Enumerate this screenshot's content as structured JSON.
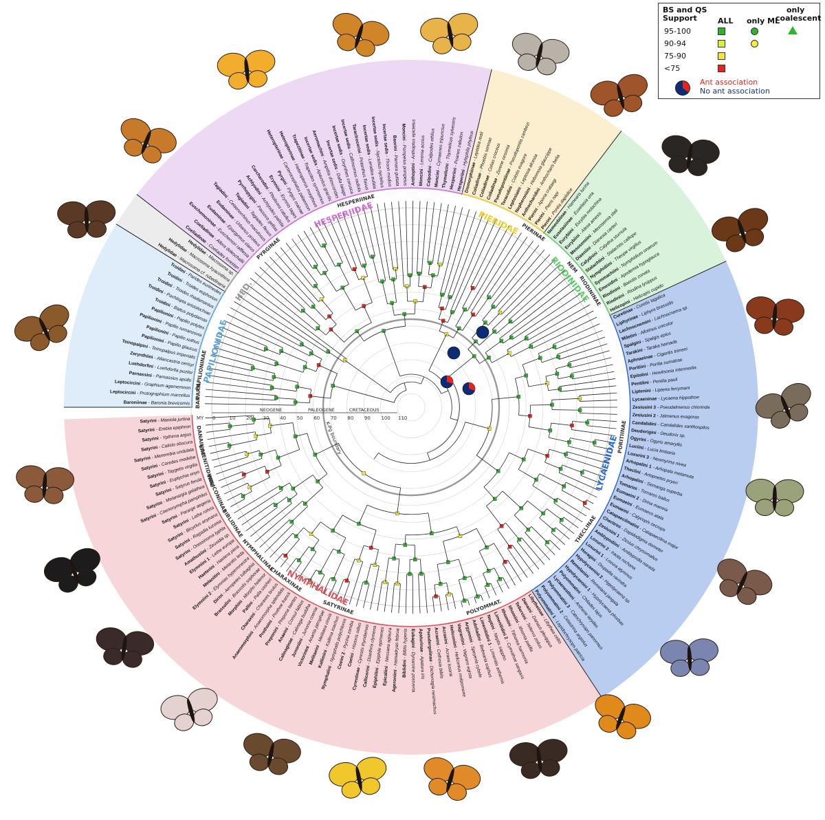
{
  "legend": {
    "header": [
      "BS and QS",
      "Support"
    ],
    "col_all": "ALL",
    "col_ml": "only ML",
    "col_coal": [
      "only",
      "coalescent"
    ],
    "rows": [
      {
        "label": "95-100",
        "color": "#2db52d"
      },
      {
        "label": "90-94",
        "color": "#d9f03a"
      },
      {
        "label": "75-90",
        "color": "#f3e63a"
      },
      {
        "label": "<75",
        "color": "#e8231c"
      }
    ],
    "ant": "Ant association",
    "noant": "No ant association",
    "ant_color": "#e8231c",
    "noant_color": "#0c2c75"
  },
  "timescale": {
    "unit": "MY",
    "ticks": [
      "0",
      "10",
      "20",
      "30",
      "40",
      "50",
      "60",
      "70",
      "80",
      "90",
      "100",
      "110"
    ],
    "eras": [
      "NEOGENE",
      "PALEOGENE",
      "CRETACEOUS"
    ],
    "boundary": "K-Pg boundary"
  },
  "families": [
    {
      "name": "PAPILIONIDAE",
      "color": "#5aa6dc",
      "bg": "#deedf9"
    },
    {
      "name": "HED.",
      "color": "#9a9a9a",
      "bg": "#ececec"
    },
    {
      "name": "HESPERIIDAE",
      "color": "#d26bdc",
      "bg": "#eed9f5"
    },
    {
      "name": "PIERIDAE",
      "color": "#f0cd2a",
      "bg": "#fbefcf"
    },
    {
      "name": "RIODINIDAE",
      "color": "#5fcf6a",
      "bg": "#d9f2dc"
    },
    {
      "name": "LYCAENIDAE",
      "color": "#2a6adf",
      "bg": "#b9cdf1"
    },
    {
      "name": "NYMPHALIDAE",
      "color": "#e2505a",
      "bg": "#f6d6d9"
    }
  ],
  "subfamilies": [
    "BAR.",
    "PARN.",
    "PAPILIONINAE",
    "PYRGINAE",
    "HESPERIINAE",
    "PIERINAE",
    "NEM",
    "RIODININAE",
    "PORITIINAE",
    "THECLINAE",
    "POLYOMMAT.",
    "SATYRINAE",
    "CHARAXINAE",
    "NYMPHALINAE",
    "BIBLIDINAE",
    "HELICONIINAE",
    "LIMENITIDINAE",
    "DANAINAE"
  ],
  "sectors": [
    {
      "family": "PAPILIONIDAE",
      "tips": [
        [
          "Baroniinae",
          "Baronia brevicornis"
        ],
        [
          "Leptocircini",
          "Protographium marcellus"
        ],
        [
          "Leptocircini",
          "Graphium agamemnon"
        ],
        [
          "Parnassini",
          "Parnassius apollo"
        ],
        [
          "Luehdorfini",
          "Luehdorfia puziloi"
        ],
        [
          "Zerynthiini",
          "Allancastria cerisyi"
        ],
        [
          "Teinopalpini",
          "Teinopalpus imperialis"
        ],
        [
          "Papilionini",
          "Papilio glaucus"
        ],
        [
          "Papilionini",
          "Papilio xuthus"
        ],
        [
          "Papilionini",
          "Papilio rumanzovia"
        ],
        [
          "Papilionini",
          "Papilio polytes"
        ],
        [
          "Troidini",
          "Battus polydamas"
        ],
        [
          "Troidini",
          "Pachliopta aristolochiae"
        ],
        [
          "Troidini",
          "Troides rhadamantus"
        ],
        [
          "Troidini",
          "Troides euphorion"
        ],
        [
          "Troidini",
          "Parides eurimedes"
        ]
      ]
    },
    {
      "family": "HED.",
      "tips": [
        [
          "Hedylidae",
          "Macrosoma cf. rubedinaria"
        ],
        [
          "Hedylidae",
          "Macrosoma hyacinthina"
        ],
        [
          "Hedylidae",
          "Macrosoma sp."
        ]
      ]
    },
    {
      "family": "HESPERIIDAE",
      "tips": [
        [
          "Coeliadinae",
          "Coeliades forestan"
        ],
        [
          "Coeliadinae",
          "Allora doleschallii"
        ],
        [
          "Euschemoninae",
          "Euschemon rafflesia"
        ],
        [
          "Eudaminae",
          "Epargyreus clarus"
        ],
        [
          "Eudaminae",
          "Urbanus proteus"
        ],
        [
          "Tagiadini",
          "Celaenorrhinus maculosus"
        ],
        [
          "Tagiadini",
          "Tagiades flesus"
        ],
        [
          "Pyrrhopygini",
          "Passova gellias"
        ],
        [
          "Achlyodini",
          "Achlyodes pallida"
        ],
        [
          "Carcharodini",
          "Pholisora catullus"
        ],
        [
          "Erynnini",
          "Erynnis tages"
        ],
        [
          "Pyrgini",
          "Pyrgus malvae"
        ],
        [
          "Heteropterinae",
          "Carterocephalus palaemon"
        ],
        [
          "Heteropterinae",
          "Heteropterus morpheus"
        ],
        [
          "Trapezitinae",
          "Trapezites symmomus"
        ],
        [
          "Incertae sedis",
          "Apaustus gracilis"
        ],
        [
          "Aeromachini",
          "Ampittia dioscorides"
        ],
        [
          "Incertae sedis",
          "Dalla lalage"
        ],
        [
          "Incertae sedis",
          "Oxynthes corusca"
        ],
        [
          "Incertae sedis",
          "Callimormus radiola"
        ],
        [
          "Taractrocerini",
          "Potanthus flavus"
        ],
        [
          "Incertae sedis",
          "Lerodea eufala"
        ],
        [
          "Incertae sedis",
          "Nyctelius nyctelius"
        ],
        [
          "Incertae sedis",
          "Thoon modius"
        ],
        [
          "Baorini",
          "Parnara guttata"
        ],
        [
          "Moncini",
          "Pompeius pompeius"
        ],
        [
          "Anthoptini",
          "Anthoptus epictetus"
        ],
        [
          "Moncini",
          "Lerema accius"
        ],
        [
          "Calpodini",
          "Calpodes ethlius"
        ],
        [
          "Moncini",
          "Cymaenes tripunctus"
        ],
        [
          "Thymelicini",
          "Thymelicus sylvestris"
        ],
        [
          "Hesperiini",
          "Poanes zabulon"
        ],
        [
          "Hesperiini",
          "Hylephila phyleus"
        ]
      ]
    },
    {
      "family": "PIERIDAE",
      "tips": [
        [
          "Dismorphiinae",
          "Leptidea reali"
        ],
        [
          "Coliadinae",
          "Phoebis sennae"
        ],
        [
          "Coliadinae",
          "Colias croceus"
        ],
        [
          "Coliadinae",
          "Zerene cesonia"
        ],
        [
          "Pseudopontiinae",
          "Pseudopontia zambezi"
        ],
        [
          "Teracolini",
          "Colotis evagore"
        ],
        [
          "Leptosiaini",
          "Leptosia alcesta"
        ],
        [
          "Nepheroniini",
          "Hebomoia glaucippe"
        ],
        [
          "Anthocharidini",
          "Anthocharis belia"
        ],
        [
          "Pierini",
          "Aporia crataegi"
        ],
        [
          "Pierini",
          "Pieris napi"
        ],
        [
          "Pierini",
          "Pontia daplidice"
        ]
      ]
    },
    {
      "family": "RIODINIDAE",
      "tips": [
        [
          "Nemeobiinae",
          "Hamearis lucina"
        ],
        [
          "Euselasiinae",
          "Euselasia uria"
        ],
        [
          "Eurybiini",
          "Eurybia molochina"
        ],
        [
          "Eurybiini",
          "Alesa amesis"
        ],
        [
          "Mesosemiini",
          "Mesosemia steli"
        ],
        [
          "Diaeniini",
          "Dianesia carteri"
        ],
        [
          "Calydnini",
          "Calydna sturnula"
        ],
        [
          "Stalachtini",
          "Stalachtis calliope"
        ],
        [
          "Nymphidiini",
          "Theope virgilius"
        ],
        [
          "Symmachiini",
          "Nymphidium onaeum"
        ],
        [
          "Emesidini",
          "Apodemia hypoglauca"
        ],
        [
          "Riodinini",
          "Baeotis zonata"
        ],
        [
          "Riodinini",
          "Riodina lysippus"
        ],
        [
          "Helicopini",
          "Helicopis cupido"
        ]
      ]
    },
    {
      "family": "LYCAENIDAE",
      "tips": [
        [
          "Curetinae",
          "Curetis tagalica"
        ],
        [
          "Liphyrinae",
          "Liphyra brassolis"
        ],
        [
          "Lachnocnemini",
          "Lachnocnema sp."
        ],
        [
          "Miletini",
          "Allotinus unicolor"
        ],
        [
          "Spalgini",
          "Spalgis epius"
        ],
        [
          "Tarakini",
          "Taraka hamada"
        ],
        [
          "Aphnaeinae",
          "Cigaritis trimeni"
        ],
        [
          "Poritiini",
          "Poritia sumatrae"
        ],
        [
          "Epitolini",
          "Hewitsonia intermedia"
        ],
        [
          "Pentilini",
          "Pentila pauli"
        ],
        [
          "Liptenini",
          "Liptena ferrymani"
        ],
        [
          "Lycaeninae",
          "Lycaena hippothoe"
        ],
        [
          "Zesiusini 3",
          "Pseudalmenus chlorinda"
        ],
        [
          "Zesiusini 2",
          "Jalmenus evagoras"
        ],
        [
          "Candalidini",
          "Candalides xanthospilos"
        ],
        [
          "Deudorigini",
          "Deudorix sp."
        ],
        [
          "Ogyrini",
          "Ogyris amaryllis"
        ],
        [
          "Luciini",
          "Lucia limbaria"
        ],
        [
          "Loxurini 3",
          "Neomyrina nivea"
        ],
        [
          "Arhopalini 1",
          "Arhopala metamuta"
        ],
        [
          "Theclini",
          "Artopoetes pryeri"
        ],
        [
          "Arhopalini",
          "Semanga superba"
        ],
        [
          "Tomarini",
          "Tomares ballus"
        ],
        [
          "Eumaeini 2",
          "Drina maneia"
        ],
        [
          "Eumaeini",
          "Eumaeus atala"
        ],
        [
          "Eumaeini",
          "Calycopis cecrops"
        ],
        [
          "Catapaecilmatini",
          "Catapaecilma major"
        ],
        [
          "Cheritrini",
          "Dapidodigma demeter"
        ],
        [
          "Zesiusini 1",
          "Zesius chrysomallus"
        ],
        [
          "Amblypodiini",
          "Amblypodia narada"
        ],
        [
          "Loxurini 2",
          "Iraota rochana"
        ],
        [
          "Loxurini 1",
          "Loxura atymnus"
        ],
        [
          "Horagini",
          "Drupadia ravindra"
        ],
        [
          "Hypolycaenini 2",
          "Hypolycaena sp."
        ],
        [
          "Remelanini",
          "Remelana jangala"
        ],
        [
          "Hypolycaenini 1",
          "Hypolycaena phorbas"
        ],
        [
          "Polyommatini",
          "Chilades lajus"
        ],
        [
          "Lycaenesthini",
          "Anthene larydas"
        ],
        [
          "Polyommatini 3",
          "Catochrysops panormus"
        ],
        [
          "Polyommatini 2",
          "Celastrina argiolus"
        ],
        [
          "Polyommatini 1",
          "Lepidochrysops patricia"
        ]
      ]
    },
    {
      "family": "NYMPHALIDAE",
      "tips": [
        [
          "Libytheinae",
          "Libythea celtis"
        ],
        [
          "Danaini",
          "Danaus plexippus"
        ],
        [
          "Tellervini",
          "Tellervo zoilus"
        ],
        [
          "Ithomiini",
          "Ithomia patilla"
        ],
        [
          "Ithomiini",
          "Tithorea harmonia"
        ],
        [
          "Limenitidini 2",
          "Cymothoe sangaris"
        ],
        [
          "Neptini",
          "Neptis sappho"
        ],
        [
          "Limenitidini 1",
          "Limenitis arthemis"
        ],
        [
          "Adoliadini",
          "Bebearia sophus"
        ],
        [
          "Argynnini",
          "Speyeria cybele"
        ],
        [
          "Vagrantini",
          "Vagrans egista"
        ],
        [
          "Heliconiini",
          "Heliconius melpomene"
        ],
        [
          "Acraeini",
          "Acraea issoria"
        ],
        [
          "Acraeini",
          "Cethosia biblis"
        ],
        [
          "Pseudergolinae",
          "Dichorragia nesimachus"
        ],
        [
          "Apaturinae",
          "Apatura iris"
        ],
        [
          "Eubagini",
          "Dynamine postverta"
        ],
        [
          "Biblidini",
          "Biblis hyperia"
        ],
        [
          "Ageroniini",
          "Hamadryas februa"
        ],
        [
          "Epicaliini",
          "Nessaea aglaura"
        ],
        [
          "Epiphilini",
          "Epiphile epimenes"
        ],
        [
          "Callicorini",
          "Diaethria clymena"
        ],
        [
          "Cyrestinae",
          "Cyrestis thyodamas"
        ],
        [
          "Coeini",
          "Historis odius"
        ],
        [
          "Coeini 2",
          "Pycina zamba"
        ],
        [
          "Nymphalini",
          "Nymphalis polychloros"
        ],
        [
          "Kallimini",
          "Kallima inachus"
        ],
        [
          "Melitaeini",
          "Melitaea cinxia"
        ],
        [
          "Victorinini",
          "Anartia jatrophae"
        ],
        [
          "Junoniini",
          "Junonia coenia"
        ],
        [
          "Calinaginae",
          "Calinaga buddha"
        ],
        [
          "Anaeini",
          "Consul fabius"
        ],
        [
          "Preponini",
          "Prepona laertes"
        ],
        [
          "Prothoini",
          "Prothoe franck"
        ],
        [
          "Anaeomorphini",
          "Anaeomorpha splendida"
        ],
        [
          "Charaxini",
          "Charaxes brutus"
        ],
        [
          "Pallini",
          "Palla ussheri"
        ],
        [
          "Morphini",
          "Morpho helenor"
        ],
        [
          "Brassolini",
          "Brassolis sophorae"
        ],
        [
          "Dirini",
          "Aeropetes tulbaghia"
        ],
        [
          "Elymniini 2",
          "Elymnias hypermnestra"
        ],
        [
          "Melanitini",
          "Melanitis leda"
        ],
        [
          "Haeterini",
          "Haetera piera"
        ],
        [
          "Elymniini 1",
          "Lethe europa"
        ],
        [
          "Amathusiini",
          "Zeuxidia sp."
        ],
        [
          "Satyrini",
          "Oressinoma typhla"
        ],
        [
          "Satyrini",
          "Ragadia luzonia"
        ],
        [
          "Satyrini",
          "Bicyclus anynana"
        ],
        [
          "Satyrini",
          "Lethe rohria"
        ],
        [
          "Satyrini",
          "Pararge aegeria"
        ],
        [
          "Satyrini",
          "Coenonympha pamphilus"
        ],
        [
          "Satyrini",
          "Melanargia galathea"
        ],
        [
          "Satyrini",
          "Satyrus ferula"
        ],
        [
          "Satyrini",
          "Euptychia enyo"
        ],
        [
          "Satyrini",
          "Taygetis virgilia"
        ],
        [
          "Satyrini",
          "Coredes medeba"
        ],
        [
          "Satyrini",
          "Manerebia undulata"
        ],
        [
          "Satyrini",
          "Calisto obscura"
        ],
        [
          "Satyrini",
          "Ypthima argus"
        ],
        [
          "Satyrini",
          "Erebia epiphron"
        ],
        [
          "Satyrini",
          "Maniola jurtina"
        ]
      ]
    }
  ]
}
